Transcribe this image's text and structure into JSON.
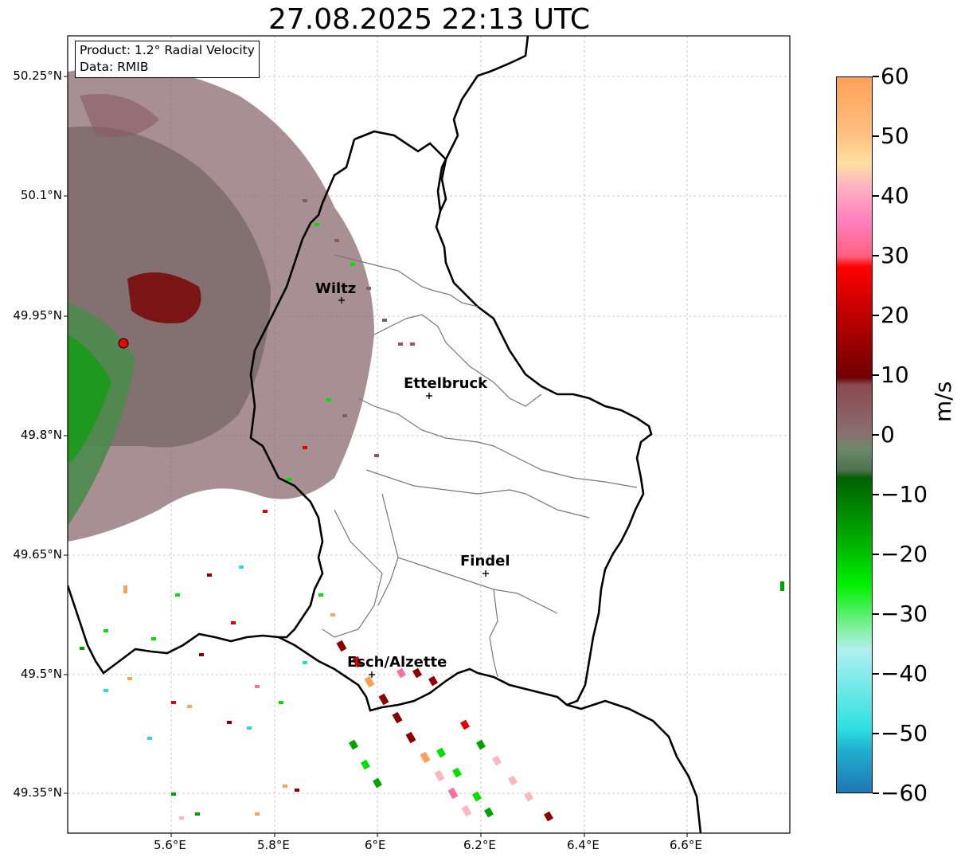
{
  "title": "27.08.2025 22:13 UTC",
  "info": {
    "product": "Product: 1.2° Radial Velocity",
    "data": "Data: RMIB"
  },
  "map": {
    "lat_ticks": [
      "50.25°N",
      "50.1°N",
      "49.95°N",
      "49.8°N",
      "49.65°N",
      "49.5°N",
      "49.35°N"
    ],
    "lon_ticks": [
      "5.6°E",
      "5.8°E",
      "6°E",
      "6.2°E",
      "6.4°E",
      "6.6°E"
    ],
    "cities": [
      {
        "name": "Wiltz"
      },
      {
        "name": "Ettelbruck"
      },
      {
        "name": "Findel"
      },
      {
        "name": "Esch/Alzette"
      }
    ],
    "radar_marker_color": "#e8000b",
    "gridlines": true
  },
  "colorbar": {
    "unit": "m/s",
    "ticks": [
      "60",
      "50",
      "40",
      "30",
      "20",
      "10",
      "0",
      "−10",
      "−20",
      "−30",
      "−40",
      "−50",
      "−60"
    ],
    "range": [
      -60,
      60
    ],
    "colors": {
      "neg_far": "#1f77b4",
      "neg_cyan": "#2fd6d6",
      "neg_green": "#00e000",
      "near_zero_green": "#5a7f5a",
      "near_zero_red": "#8a5a62",
      "pos_red": "#e00000",
      "pos_pink": "#ff6ea0",
      "pos_orange": "#ffa05a"
    }
  }
}
